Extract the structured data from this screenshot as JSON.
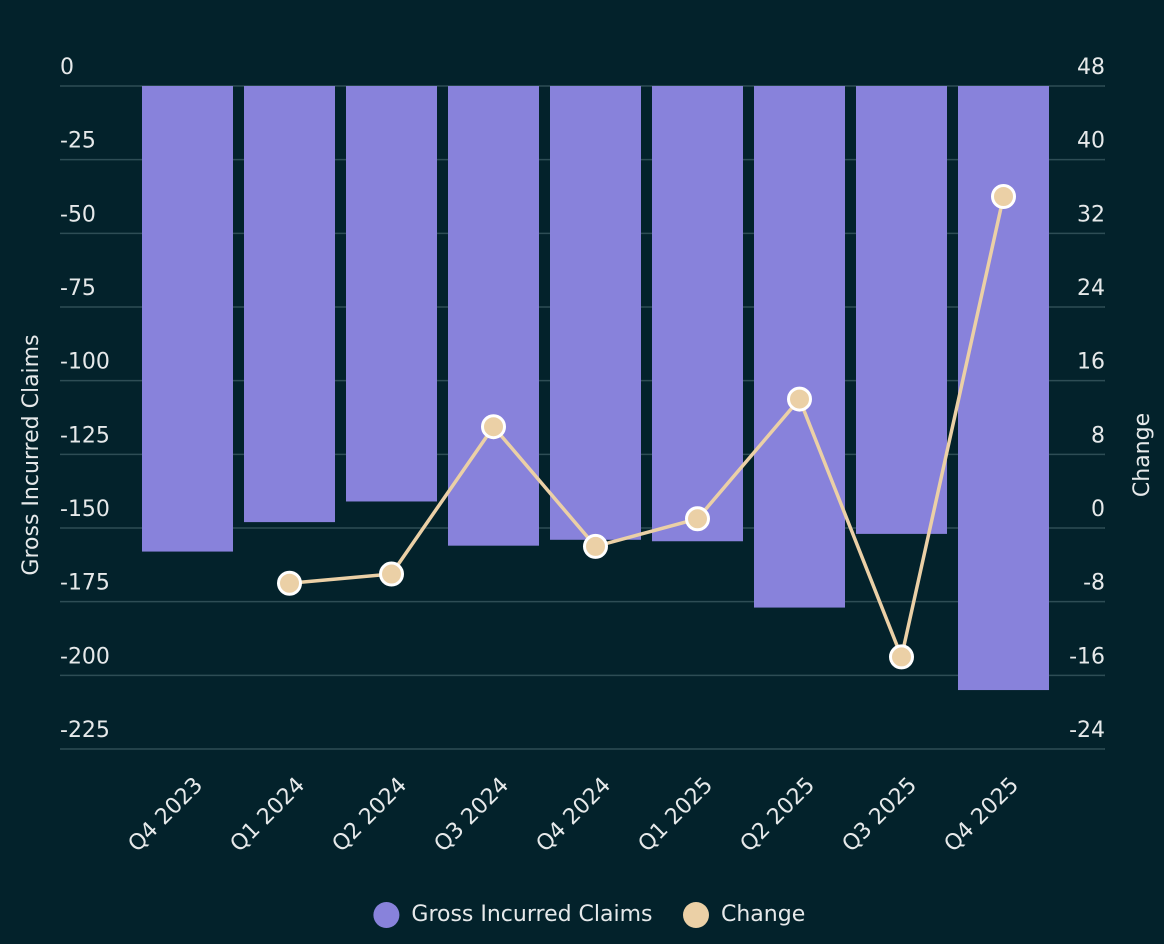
{
  "chart_data": {
    "type": "bar-line",
    "categories": [
      "Q4 2023",
      "Q1 2024",
      "Q2 2024",
      "Q3 2024",
      "Q4 2024",
      "Q1 2025",
      "Q2 2025",
      "Q3 2025",
      "Q4 2025"
    ],
    "series": [
      {
        "name": "Gross Incurred Claims",
        "type": "bar",
        "color": "#8882db",
        "values": [
          -158,
          -148,
          -141,
          -156,
          -154,
          -154.5,
          -177,
          -152,
          -205
        ]
      },
      {
        "name": "Change",
        "type": "line",
        "axis": "y2",
        "color": "#ebd0a6",
        "values": [
          null,
          -6,
          -5,
          11,
          -2,
          1,
          14,
          -14,
          36
        ]
      }
    ],
    "ylabel": "Gross Incurred Claims",
    "y2label": "Change",
    "ylim": [
      -225,
      0
    ],
    "yticks": [
      0,
      -25,
      -50,
      -75,
      -100,
      -125,
      -150,
      -175,
      -200,
      -225
    ],
    "y2lim": [
      -24,
      48
    ],
    "y2ticks": [
      48,
      40,
      32,
      24,
      16,
      8,
      0,
      -8,
      -16,
      -24
    ],
    "grid": true,
    "legend": "bottom"
  }
}
